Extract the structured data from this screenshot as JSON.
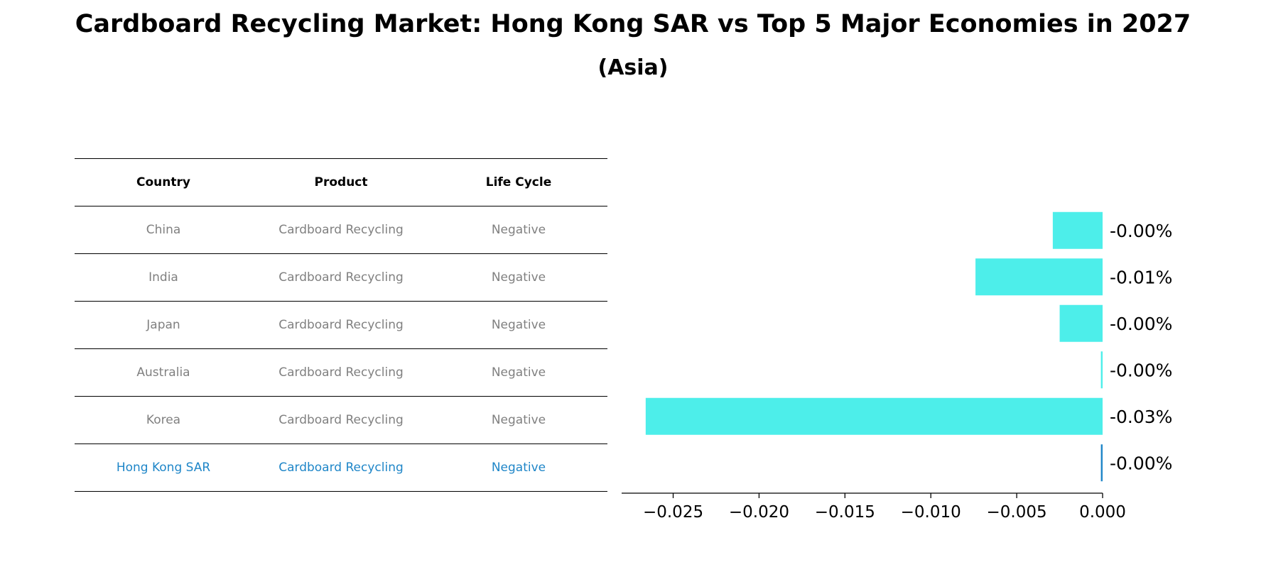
{
  "title": "Cardboard Recycling Market: Hong Kong SAR vs Top 5 Major Economies in 2027",
  "subtitle": "(Asia)",
  "table": {
    "headers": [
      "Country",
      "Product",
      "Life Cycle"
    ],
    "rows": [
      {
        "country": "China",
        "product": "Cardboard Recycling",
        "life_cycle": "Negative"
      },
      {
        "country": "India",
        "product": "Cardboard Recycling",
        "life_cycle": "Negative"
      },
      {
        "country": "Japan",
        "product": "Cardboard Recycling",
        "life_cycle": "Negative"
      },
      {
        "country": "Australia",
        "product": "Cardboard Recycling",
        "life_cycle": "Negative"
      },
      {
        "country": "Korea",
        "product": "Cardboard Recycling",
        "life_cycle": "Negative"
      },
      {
        "country": "Hong Kong SAR",
        "product": "Cardboard Recycling",
        "life_cycle": "Negative"
      }
    ]
  },
  "colors": {
    "bar": "#4deeea",
    "highlight": "#1f86c8",
    "muted_text": "#808080"
  },
  "chart_data": {
    "type": "bar",
    "orientation": "horizontal",
    "categories": [
      "China",
      "India",
      "Japan",
      "Australia",
      "Korea",
      "Hong Kong SAR"
    ],
    "values": [
      -0.0029,
      -0.0074,
      -0.0025,
      -0.0001,
      -0.0266,
      -0.0001
    ],
    "data_labels": [
      "-0.00%",
      "-0.01%",
      "-0.00%",
      "-0.00%",
      "-0.03%",
      "-0.00%"
    ],
    "highlighted_category": "Hong Kong SAR",
    "xlim": [
      -0.028,
      0.0
    ],
    "xticks": [
      -0.025,
      -0.02,
      -0.015,
      -0.01,
      -0.005,
      0.0
    ],
    "xtick_labels": [
      "−0.025",
      "−0.020",
      "−0.015",
      "−0.010",
      "−0.005",
      "0.000"
    ],
    "xlabel": "",
    "ylabel": "",
    "grid": false
  }
}
